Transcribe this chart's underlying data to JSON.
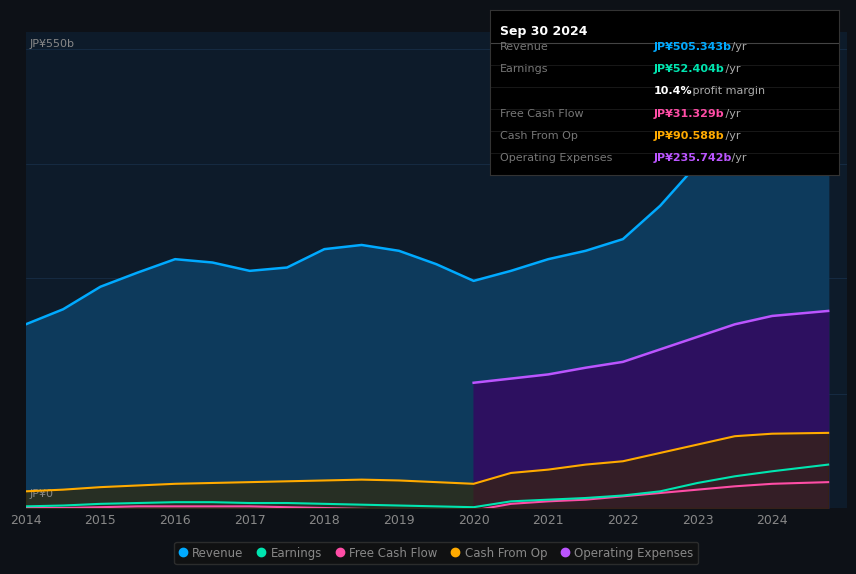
{
  "bg_color": "#0d1117",
  "plot_bg_color": "#0d1b2a",
  "years": [
    2014.0,
    2014.5,
    2015.0,
    2015.5,
    2016.0,
    2016.5,
    2017.0,
    2017.5,
    2018.0,
    2018.5,
    2019.0,
    2019.5,
    2020.0,
    2020.5,
    2021.0,
    2021.5,
    2022.0,
    2022.5,
    2023.0,
    2023.5,
    2024.0,
    2024.75
  ],
  "revenue": [
    220,
    238,
    265,
    282,
    298,
    294,
    284,
    288,
    310,
    315,
    308,
    292,
    272,
    284,
    298,
    308,
    322,
    362,
    412,
    460,
    490,
    505
  ],
  "earnings": [
    2,
    3,
    5,
    6,
    7,
    7,
    6,
    6,
    5,
    4,
    3,
    2,
    1,
    8,
    10,
    12,
    15,
    20,
    30,
    38,
    44,
    52
  ],
  "free_cash_flow": [
    0,
    0,
    1,
    2,
    2,
    2,
    2,
    1,
    0,
    -1,
    -2,
    -3,
    -3,
    5,
    8,
    10,
    14,
    18,
    22,
    26,
    29,
    31
  ],
  "cash_from_op": [
    20,
    22,
    25,
    27,
    29,
    30,
    31,
    32,
    33,
    34,
    33,
    31,
    29,
    42,
    46,
    52,
    56,
    66,
    76,
    86,
    89,
    90
  ],
  "op_expenses": [
    0,
    0,
    0,
    0,
    0,
    0,
    0,
    0,
    0,
    0,
    0,
    0,
    150,
    155,
    160,
    168,
    175,
    190,
    205,
    220,
    230,
    236
  ],
  "revenue_color": "#00aaff",
  "revenue_fill": "#0d3a5c",
  "earnings_color": "#00e5b0",
  "fcf_color": "#ff4da6",
  "cash_op_color": "#ffaa00",
  "op_exp_color": "#bb55ff",
  "op_exp_fill": "#2d1060",
  "cash_op_fill": "#3a2800",
  "grid_color": "#1e3a5a",
  "text_color": "#888888",
  "white_color": "#ffffff",
  "ylim": [
    0,
    570
  ],
  "xlim_min": 2014.0,
  "xlim_max": 2025.0,
  "ytop_label": "JP¥550b",
  "ybot_label": "JP¥0",
  "xticks": [
    2014,
    2015,
    2016,
    2017,
    2018,
    2019,
    2020,
    2021,
    2022,
    2023,
    2024
  ],
  "panel_title": "Sep 30 2024",
  "panel_rows": [
    {
      "label": "Revenue",
      "value": "JP¥505.343b",
      "value_color": "#00aaff",
      "suffix": " /yr",
      "extra": ""
    },
    {
      "label": "Earnings",
      "value": "JP¥52.404b",
      "value_color": "#00e5b0",
      "suffix": " /yr",
      "extra": ""
    },
    {
      "label": "",
      "value": "10.4%",
      "value_color": "#ffffff",
      "suffix": " profit margin",
      "extra": ""
    },
    {
      "label": "Free Cash Flow",
      "value": "JP¥31.329b",
      "value_color": "#ff4da6",
      "suffix": " /yr",
      "extra": ""
    },
    {
      "label": "Cash From Op",
      "value": "JP¥90.588b",
      "value_color": "#ffaa00",
      "suffix": " /yr",
      "extra": ""
    },
    {
      "label": "Operating Expenses",
      "value": "JP¥235.742b",
      "value_color": "#bb55ff",
      "suffix": " /yr",
      "extra": ""
    }
  ],
  "legend_items": [
    {
      "label": "Revenue",
      "color": "#00aaff"
    },
    {
      "label": "Earnings",
      "color": "#00e5b0"
    },
    {
      "label": "Free Cash Flow",
      "color": "#ff4da6"
    },
    {
      "label": "Cash From Op",
      "color": "#ffaa00"
    },
    {
      "label": "Operating Expenses",
      "color": "#bb55ff"
    }
  ]
}
